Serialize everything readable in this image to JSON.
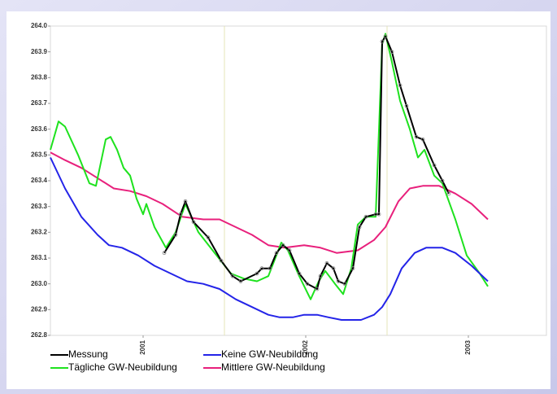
{
  "chart_data": {
    "type": "line",
    "xlim": [
      2000.43,
      2003.48
    ],
    "xticks": [
      2001,
      2002,
      2003
    ],
    "x_gridlines": [
      2001.5,
      2002.5
    ],
    "ylim": [
      262.8,
      264.0
    ],
    "yticks": [
      262.8,
      262.9,
      {
        "value": 263,
        "label": "263.0"
      },
      263.1,
      263.2,
      263.3,
      263.4,
      263.5,
      263.6,
      263.7,
      263.8,
      263.9,
      {
        "value": 264,
        "label": "264.0"
      }
    ],
    "markers_on_first_series": true,
    "series": [
      {
        "name": "Messung",
        "color": "#000000",
        "x": [
          2001.13,
          2001.2,
          2001.23,
          2001.26,
          2001.31,
          2001.4,
          2001.48,
          2001.55,
          2001.6,
          2001.7,
          2001.73,
          2001.78,
          2001.82,
          2001.86,
          2001.9,
          2001.96,
          2002.01,
          2002.07,
          2002.09,
          2002.13,
          2002.17,
          2002.2,
          2002.24,
          2002.29,
          2002.33,
          2002.37,
          2002.43,
          2002.45,
          2002.47,
          2002.49,
          2002.53,
          2002.58,
          2002.62,
          2002.68,
          2002.72,
          2002.79,
          2002.84,
          2002.88
        ],
        "values": [
          263.12,
          263.19,
          263.27,
          263.32,
          263.24,
          263.18,
          263.09,
          263.03,
          263.01,
          263.04,
          263.06,
          263.06,
          263.12,
          263.15,
          263.13,
          263.04,
          263.0,
          262.98,
          263.03,
          263.08,
          263.06,
          263.01,
          263.0,
          263.06,
          263.22,
          263.26,
          263.27,
          263.27,
          263.94,
          263.96,
          263.9,
          263.77,
          263.69,
          263.57,
          263.56,
          263.46,
          263.4,
          263.35
        ]
      },
      {
        "name": "Keine GW-Neubildung",
        "color": "#2424e8",
        "x": [
          2000.43,
          2000.52,
          2000.62,
          2000.72,
          2000.79,
          2000.87,
          2000.97,
          2001.07,
          2001.17,
          2001.27,
          2001.37,
          2001.47,
          2001.57,
          2001.67,
          2001.77,
          2001.84,
          2001.92,
          2001.99,
          2002.07,
          2002.14,
          2002.22,
          2002.34,
          2002.42,
          2002.47,
          2002.52,
          2002.59,
          2002.67,
          2002.74,
          2002.84,
          2002.92,
          2003.02,
          2003.12
        ],
        "values": [
          263.49,
          263.37,
          263.26,
          263.19,
          263.15,
          263.14,
          263.11,
          263.07,
          263.04,
          263.01,
          263.0,
          262.98,
          262.94,
          262.91,
          262.88,
          262.87,
          262.87,
          262.88,
          262.88,
          262.87,
          262.86,
          262.86,
          262.88,
          262.91,
          262.96,
          263.06,
          263.12,
          263.14,
          263.14,
          263.12,
          263.07,
          263.01
        ]
      },
      {
        "name": "Tägliche GW-Neubildung",
        "color": "#1ee21e",
        "x": [
          2000.43,
          2000.48,
          2000.52,
          2000.6,
          2000.67,
          2000.71,
          2000.73,
          2000.77,
          2000.8,
          2000.84,
          2000.88,
          2000.92,
          2000.96,
          2001.0,
          2001.02,
          2001.07,
          2001.14,
          2001.2,
          2001.26,
          2001.34,
          2001.44,
          2001.54,
          2001.62,
          2001.7,
          2001.77,
          2001.85,
          2001.89,
          2001.96,
          2002.03,
          2002.08,
          2002.12,
          2002.18,
          2002.23,
          2002.28,
          2002.32,
          2002.37,
          2002.43,
          2002.47,
          2002.49,
          2002.53,
          2002.58,
          2002.64,
          2002.69,
          2002.73,
          2002.79,
          2002.84,
          2002.92,
          2002.99,
          2003.07,
          2003.12
        ],
        "values": [
          263.52,
          263.63,
          263.61,
          263.5,
          263.39,
          263.38,
          263.44,
          263.56,
          263.57,
          263.52,
          263.45,
          263.42,
          263.33,
          263.27,
          263.31,
          263.22,
          263.14,
          263.2,
          263.31,
          263.2,
          263.12,
          263.04,
          263.02,
          263.01,
          263.03,
          263.16,
          263.13,
          263.03,
          262.94,
          263.01,
          263.05,
          263.0,
          262.96,
          263.06,
          263.23,
          263.26,
          263.26,
          263.93,
          263.97,
          263.86,
          263.71,
          263.6,
          263.49,
          263.52,
          263.42,
          263.39,
          263.25,
          263.11,
          263.04,
          262.99
        ]
      },
      {
        "name": "Mittlere GW-Neubildung",
        "color": "#e8207c",
        "x": [
          2000.43,
          2000.52,
          2000.62,
          2000.72,
          2000.82,
          2000.92,
          2001.02,
          2001.12,
          2001.24,
          2001.37,
          2001.47,
          2001.57,
          2001.67,
          2001.77,
          2001.87,
          2001.99,
          2002.09,
          2002.19,
          2002.32,
          2002.42,
          2002.49,
          2002.57,
          2002.64,
          2002.72,
          2002.82,
          2002.92,
          2003.02,
          2003.12
        ],
        "values": [
          263.51,
          263.48,
          263.45,
          263.41,
          263.37,
          263.36,
          263.34,
          263.31,
          263.26,
          263.25,
          263.25,
          263.22,
          263.19,
          263.15,
          263.14,
          263.15,
          263.14,
          263.12,
          263.13,
          263.17,
          263.22,
          263.32,
          263.37,
          263.38,
          263.38,
          263.35,
          263.31,
          263.25
        ]
      }
    ]
  }
}
